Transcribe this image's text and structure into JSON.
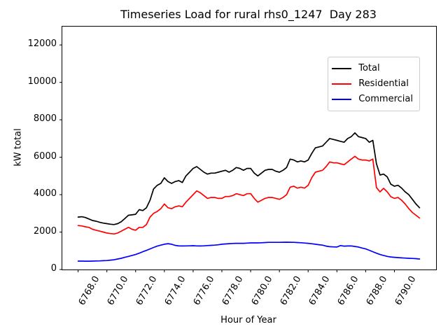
{
  "chart_data": {
    "type": "line",
    "title": "Timeseries Load for rural rhs0_1247  Day 283",
    "xlabel": "Hour of Year",
    "ylabel": "kW total",
    "xlim": [
      6766.9,
      6792.9
    ],
    "ylim": [
      0,
      12980
    ],
    "grid": false,
    "legend_position": "upper right",
    "x_ticks": [
      {
        "value": 6768,
        "label": "6768.0"
      },
      {
        "value": 6770,
        "label": "6770.0"
      },
      {
        "value": 6772,
        "label": "6772.0"
      },
      {
        "value": 6774,
        "label": "6774.0"
      },
      {
        "value": 6776,
        "label": "6776.0"
      },
      {
        "value": 6778,
        "label": "6778.0"
      },
      {
        "value": 6780,
        "label": "6780.0"
      },
      {
        "value": 6782,
        "label": "6782.0"
      },
      {
        "value": 6784,
        "label": "6784.0"
      },
      {
        "value": 6786,
        "label": "6786.0"
      },
      {
        "value": 6788,
        "label": "6788.0"
      },
      {
        "value": 6790,
        "label": "6790.0"
      }
    ],
    "y_ticks": [
      {
        "value": 0,
        "label": "0"
      },
      {
        "value": 2000,
        "label": "2000"
      },
      {
        "value": 4000,
        "label": "4000"
      },
      {
        "value": 6000,
        "label": "6000"
      },
      {
        "value": 8000,
        "label": "8000"
      },
      {
        "value": 10000,
        "label": "10000"
      },
      {
        "value": 12000,
        "label": "12000"
      }
    ],
    "series": [
      {
        "name": "Total",
        "color": "#000000",
        "x0": 6768.0,
        "dx": 0.25,
        "values": [
          2800,
          2820,
          2780,
          2700,
          2620,
          2580,
          2520,
          2480,
          2450,
          2420,
          2400,
          2450,
          2550,
          2720,
          2900,
          2920,
          2950,
          3200,
          3150,
          3300,
          3700,
          4300,
          4500,
          4600,
          4900,
          4700,
          4600,
          4700,
          4750,
          4650,
          5000,
          5200,
          5400,
          5500,
          5350,
          5200,
          5100,
          5150,
          5150,
          5200,
          5250,
          5300,
          5200,
          5300,
          5450,
          5400,
          5300,
          5400,
          5400,
          5150,
          5000,
          5150,
          5300,
          5350,
          5350,
          5250,
          5200,
          5300,
          5450,
          5900,
          5850,
          5750,
          5800,
          5750,
          5850,
          6200,
          6500,
          6550,
          6600,
          6800,
          7000,
          6950,
          6900,
          6850,
          6800,
          7000,
          7100,
          7300,
          7100,
          7050,
          7000,
          6800,
          6900,
          5650,
          5050,
          5100,
          4950,
          4560,
          4450,
          4500,
          4350,
          4150,
          4000,
          3750,
          3500,
          3300
        ]
      },
      {
        "name": "Residential",
        "color": "#ff0000",
        "x0": 6768.0,
        "dx": 0.25,
        "values": [
          2350,
          2330,
          2280,
          2250,
          2150,
          2100,
          2050,
          2000,
          1950,
          1920,
          1900,
          1950,
          2050,
          2150,
          2250,
          2150,
          2100,
          2250,
          2250,
          2400,
          2800,
          3000,
          3100,
          3250,
          3500,
          3300,
          3250,
          3350,
          3400,
          3350,
          3600,
          3800,
          4000,
          4200,
          4100,
          3950,
          3800,
          3850,
          3850,
          3800,
          3800,
          3900,
          3900,
          3950,
          4050,
          4000,
          3950,
          4050,
          4050,
          3800,
          3600,
          3700,
          3800,
          3850,
          3850,
          3800,
          3750,
          3850,
          4000,
          4400,
          4450,
          4350,
          4400,
          4350,
          4500,
          4900,
          5200,
          5250,
          5300,
          5500,
          5750,
          5700,
          5700,
          5650,
          5600,
          5750,
          5900,
          6050,
          5900,
          5850,
          5850,
          5800,
          5900,
          4380,
          4150,
          4340,
          4150,
          3890,
          3800,
          3850,
          3700,
          3500,
          3250,
          3050,
          2900,
          2750
        ]
      },
      {
        "name": "Commercial",
        "color": "#0000ff",
        "x0": 6768.0,
        "dx": 0.25,
        "values": [
          450,
          450,
          445,
          445,
          450,
          455,
          460,
          470,
          480,
          500,
          520,
          560,
          600,
          650,
          700,
          750,
          800,
          870,
          950,
          1020,
          1100,
          1180,
          1250,
          1300,
          1350,
          1380,
          1350,
          1290,
          1260,
          1255,
          1260,
          1265,
          1270,
          1260,
          1255,
          1265,
          1280,
          1290,
          1300,
          1320,
          1350,
          1365,
          1380,
          1390,
          1400,
          1400,
          1400,
          1410,
          1420,
          1420,
          1420,
          1430,
          1440,
          1450,
          1450,
          1450,
          1450,
          1455,
          1460,
          1455,
          1450,
          1440,
          1430,
          1415,
          1400,
          1375,
          1350,
          1325,
          1300,
          1250,
          1220,
          1210,
          1200,
          1280,
          1250,
          1255,
          1260,
          1230,
          1200,
          1150,
          1100,
          1030,
          950,
          870,
          800,
          750,
          700,
          670,
          650,
          635,
          620,
          610,
          600,
          590,
          580,
          560
        ]
      }
    ]
  }
}
